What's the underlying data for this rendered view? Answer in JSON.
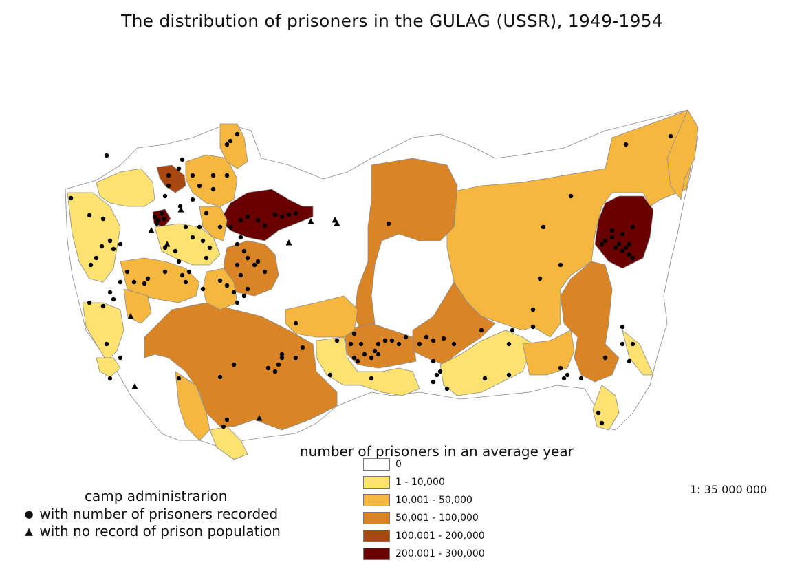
{
  "title": "The distribution of prisoners in the GULAG (USSR), 1949-1954",
  "legend": {
    "title": "number of prisoners in an average year",
    "classes": [
      {
        "label": "0",
        "color": "#ffffff"
      },
      {
        "label": "1 - 10,000",
        "color": "#fde26f"
      },
      {
        "label": "10,001 - 50,000",
        "color": "#f6b73f"
      },
      {
        "label": "50,001 - 100,000",
        "color": "#d98526"
      },
      {
        "label": "100,001 - 200,000",
        "color": "#a8470f"
      },
      {
        "label": "200,001 - 300,000",
        "color": "#680000"
      }
    ]
  },
  "scale": "1: 35 000 000",
  "camps_legend": {
    "title": "camp administrarion",
    "recorded": {
      "symbol": "●",
      "label": "with number of prisoners recorded"
    },
    "no_record": {
      "symbol": "▲",
      "label": "with no record of prison population"
    }
  },
  "colors": {
    "boundary": "#8a8a8a",
    "point": "#000000"
  }
}
